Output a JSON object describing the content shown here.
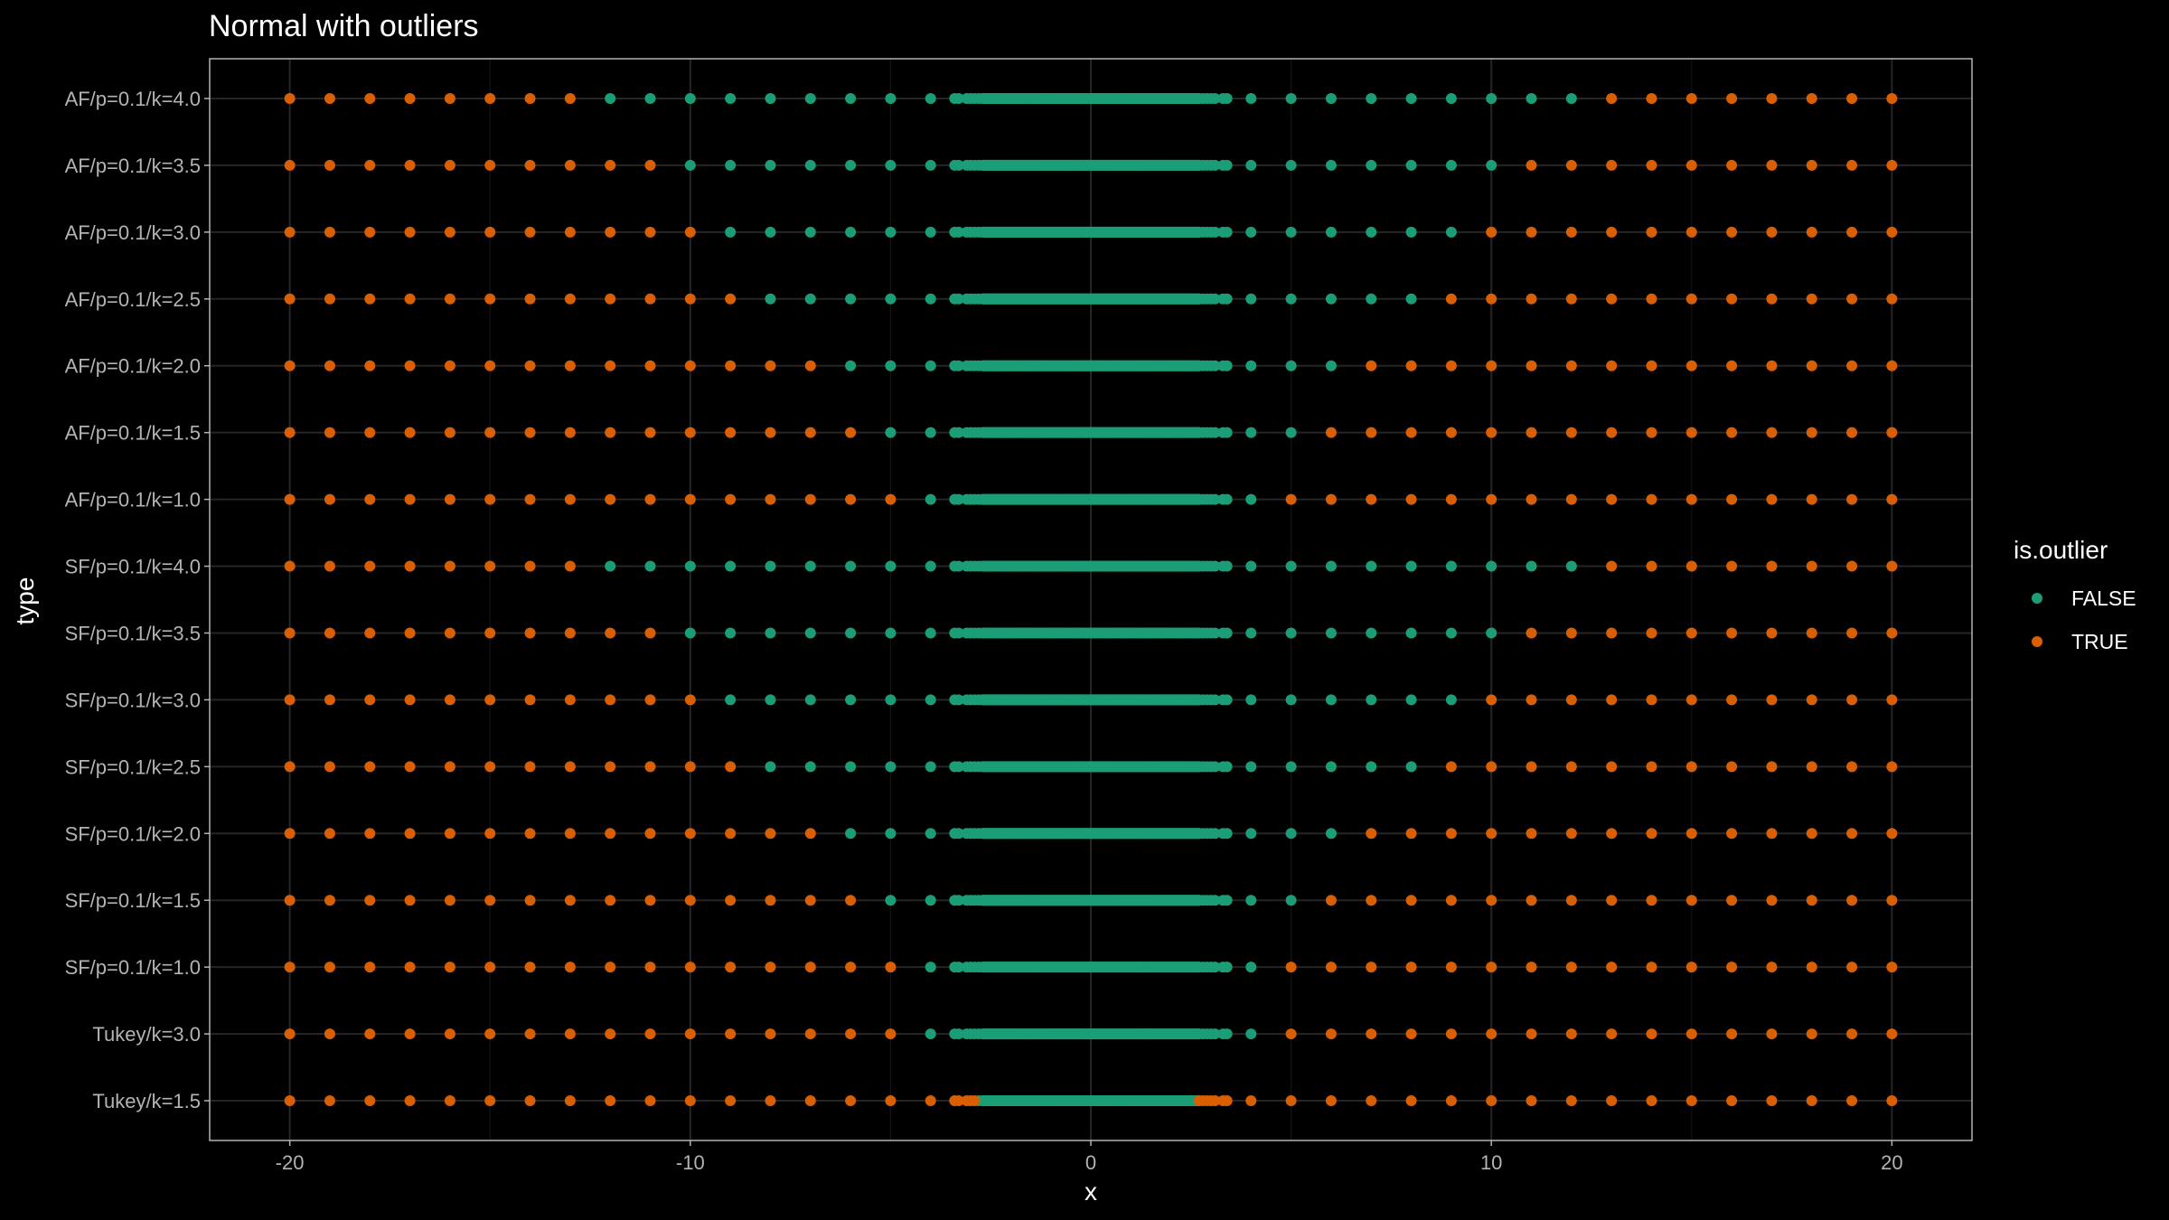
{
  "chart_data": {
    "type": "scatter",
    "title": "Normal with outliers",
    "xlabel": "x",
    "ylabel": "type",
    "xlim": [
      -22,
      22
    ],
    "x_ticks": [
      -20,
      -10,
      0,
      10,
      20
    ],
    "x_tick_labels": [
      "-20",
      "-10",
      "0",
      "10",
      "20"
    ],
    "categories": [
      "Tukey/k=1.5",
      "Tukey/k=3.0",
      "SF/p=0.1/k=1.0",
      "SF/p=0.1/k=1.5",
      "SF/p=0.1/k=2.0",
      "SF/p=0.1/k=2.5",
      "SF/p=0.1/k=3.0",
      "SF/p=0.1/k=3.5",
      "SF/p=0.1/k=4.0",
      "AF/p=0.1/k=1.0",
      "AF/p=0.1/k=1.5",
      "AF/p=0.1/k=2.0",
      "AF/p=0.1/k=2.5",
      "AF/p=0.1/k=3.0",
      "AF/p=0.1/k=3.5",
      "AF/p=0.1/k=4.0"
    ],
    "outlier_x_values": [
      -20,
      -19,
      -18,
      -17,
      -16,
      -15,
      -14,
      -13,
      -12,
      -11,
      -10,
      -9,
      -8,
      -7,
      -6,
      -5,
      -4,
      -3.4,
      -3.3,
      -3.1,
      -3.0,
      -2.9,
      -2.8,
      -2.7,
      2.7,
      2.8,
      2.9,
      3.0,
      3.1,
      3.3,
      3.4,
      4,
      5,
      6,
      7,
      8,
      9,
      10,
      11,
      12,
      13,
      14,
      15,
      16,
      17,
      18,
      19,
      20
    ],
    "core_range": [
      -2.7,
      2.7
    ],
    "inlier_bounds": [
      {
        "type": "Tukey/k=1.5",
        "lower": -2.8,
        "upper": 2.7
      },
      {
        "type": "Tukey/k=3.0",
        "lower": -4,
        "upper": 4
      },
      {
        "type": "SF/p=0.1/k=1.0",
        "lower": -4,
        "upper": 4
      },
      {
        "type": "SF/p=0.1/k=1.5",
        "lower": -5,
        "upper": 5
      },
      {
        "type": "SF/p=0.1/k=2.0",
        "lower": -6,
        "upper": 6
      },
      {
        "type": "SF/p=0.1/k=2.5",
        "lower": -8,
        "upper": 8
      },
      {
        "type": "SF/p=0.1/k=3.0",
        "lower": -9,
        "upper": 9
      },
      {
        "type": "SF/p=0.1/k=3.5",
        "lower": -10,
        "upper": 10
      },
      {
        "type": "SF/p=0.1/k=4.0",
        "lower": -12,
        "upper": 12
      },
      {
        "type": "AF/p=0.1/k=1.0",
        "lower": -4,
        "upper": 4
      },
      {
        "type": "AF/p=0.1/k=1.5",
        "lower": -5,
        "upper": 5
      },
      {
        "type": "AF/p=0.1/k=2.0",
        "lower": -6,
        "upper": 6
      },
      {
        "type": "AF/p=0.1/k=2.5",
        "lower": -8,
        "upper": 8
      },
      {
        "type": "AF/p=0.1/k=3.0",
        "lower": -9,
        "upper": 9
      },
      {
        "type": "AF/p=0.1/k=3.5",
        "lower": -10,
        "upper": 10
      },
      {
        "type": "AF/p=0.1/k=4.0",
        "lower": -12,
        "upper": 12
      }
    ],
    "legend": {
      "title": "is.outlier",
      "placement": "right",
      "entries": [
        {
          "label": "FALSE",
          "color": "#1b9e77"
        },
        {
          "label": "TRUE",
          "color": "#d95f02"
        }
      ]
    },
    "grid": true,
    "colors": {
      "background": "#000000",
      "panel_border": "#b3b3b3",
      "grid_major": "#262626",
      "grid_minor": "#141414",
      "false": "#1b9e77",
      "true": "#d95f02"
    }
  }
}
